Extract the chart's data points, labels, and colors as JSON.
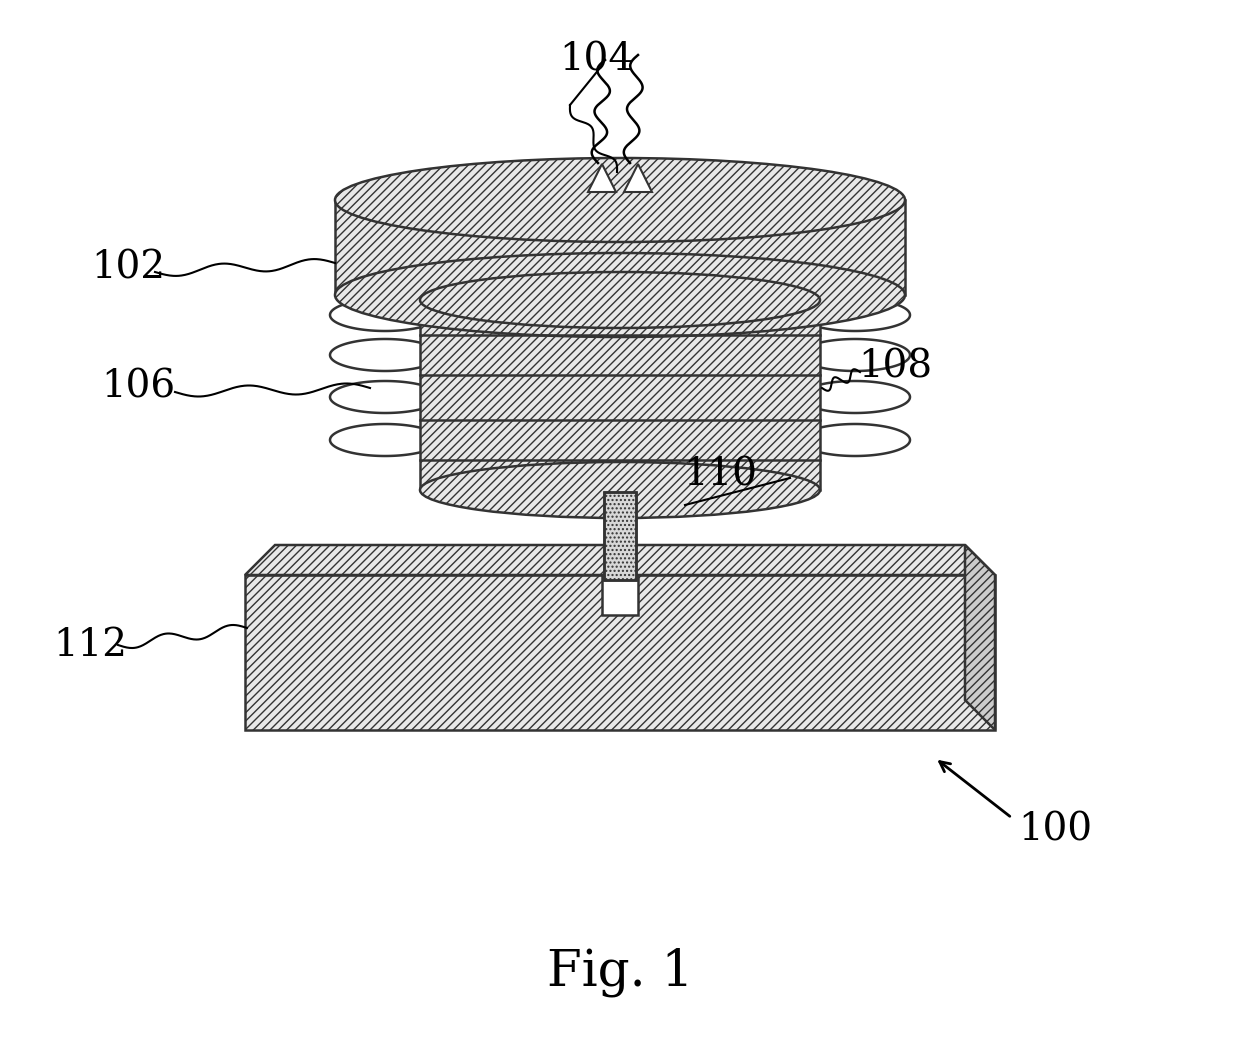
{
  "title": "Fig. 1",
  "label_100": "100",
  "label_102": "102",
  "label_104": "104",
  "label_106": "106",
  "label_108": "108",
  "label_110": "110",
  "label_112": "112",
  "bg_color": "#ffffff",
  "outline_color": "#333333",
  "light_fill": "#e8e8e8",
  "mid_fill": "#cccccc"
}
